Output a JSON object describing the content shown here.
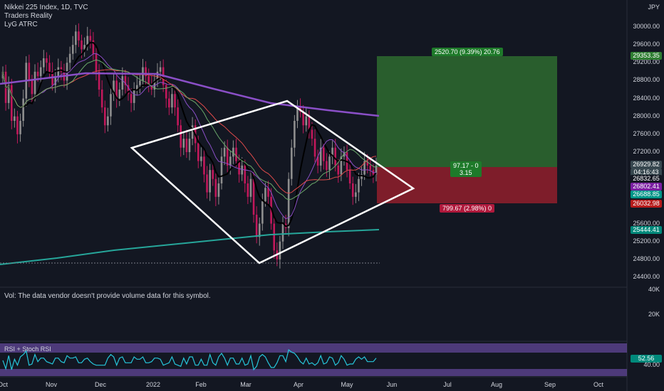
{
  "header": {
    "symbol_line": "Nikkei 225 Index, 1D, TVC",
    "author": "Traders Reality",
    "indicator": "LyG ATRC"
  },
  "currency": "JPY",
  "volume_pane": {
    "message": "Vol: The data vendor doesn't provide volume data for this symbol.",
    "axis_labels": [
      "40K",
      "20K"
    ]
  },
  "rsi_pane": {
    "title": "RSI + Stoch RSI",
    "value_label": "52.56",
    "axis_label": "40.00"
  },
  "colors": {
    "background": "#131722",
    "up_candle": "#8e8e8e",
    "down_candle": "#c2185b",
    "profit_zone": "#2e6b2f",
    "loss_zone": "#8b1e2b",
    "diamond": "#ffffff",
    "ma_long": "#8a4fc7",
    "ma_teal": "#26a69a",
    "ma_red": "#e04b4b",
    "ma_green": "#6aa86a",
    "ma_black": "#000000",
    "rsi_line": "#26c6da",
    "rsi_band": "#7e57c2"
  },
  "position_tool": {
    "target_label": "2520.70 (9.39%) 20.76",
    "stop_label": "799.67 (2.98%) 0",
    "center_label_1": "97.17 - 0",
    "center_label_2": "3.15"
  },
  "price_tags": [
    {
      "text": "29353.35",
      "color": "#2e7d32"
    },
    {
      "text": "26929.82",
      "color": "#37474f"
    },
    {
      "text": "04:16:43",
      "color": "#37474f"
    },
    {
      "text": "26832.65",
      "color": "#131722"
    },
    {
      "text": "26802.41",
      "color": "#7b1fa2"
    },
    {
      "text": "26688.85",
      "color": "#009688"
    },
    {
      "text": "26032.98",
      "color": "#b71c1c"
    },
    {
      "text": "25444.41",
      "color": "#00897b"
    }
  ],
  "chart_data": {
    "type": "candlestick",
    "title": "Nikkei 225 Index, 1D, TVC",
    "ylim": [
      24400,
      30400
    ],
    "y_ticks": [
      "30000.00",
      "29600.00",
      "29200.00",
      "28800.00",
      "28400.00",
      "28000.00",
      "27600.00",
      "27200.00",
      "25600.00",
      "25200.00",
      "24800.00",
      "24400.00"
    ],
    "y_tick_values": [
      30000,
      29600,
      29200,
      28800,
      28400,
      28000,
      27600,
      27200,
      25600,
      25200,
      24800,
      24400
    ],
    "x_ticks": [
      "Oct",
      "Nov",
      "Dec",
      "2022",
      "Feb",
      "Mar",
      "Apr",
      "May",
      "Jun",
      "Jul",
      "Aug",
      "Sep",
      "Oct"
    ],
    "closes": [
      29000,
      28300,
      28700,
      27900,
      28000,
      27600,
      27900,
      28400,
      29200,
      28800,
      28500,
      29000,
      28900,
      29100,
      29300,
      29200,
      29000,
      28700,
      28900,
      29100,
      29000,
      28800,
      29200,
      29400,
      29600,
      29900,
      29700,
      29500,
      29600,
      29800,
      29700,
      29400,
      29000,
      28600,
      28200,
      27800,
      28000,
      28500,
      28800,
      28400,
      28600,
      28900,
      28700,
      28500,
      28300,
      28600,
      28700,
      28800,
      29100,
      28900,
      28700,
      28600,
      28800,
      29000,
      29100,
      28700,
      28400,
      28200,
      28500,
      28200,
      27800,
      27300,
      27500,
      27200,
      27500,
      27800,
      27400,
      27000,
      27100,
      26700,
      26300,
      26800,
      26600,
      26200,
      26500,
      27100,
      27300,
      26900,
      27100,
      27300,
      27000,
      26700,
      26900,
      26500,
      26200,
      26600,
      25800,
      25300,
      25600,
      26100,
      26400,
      26200,
      25600,
      25000,
      24800,
      25200,
      25600,
      25500,
      26600,
      27300,
      27900,
      28200,
      28100,
      27800,
      28000,
      27700,
      27500,
      27100,
      26900,
      27300,
      27000,
      26800,
      27100,
      27300,
      26900,
      26700,
      27100,
      27200,
      26800,
      26500,
      26200,
      26300,
      26600,
      26700,
      27000,
      26900,
      26800,
      26700,
      26900
    ]
  }
}
